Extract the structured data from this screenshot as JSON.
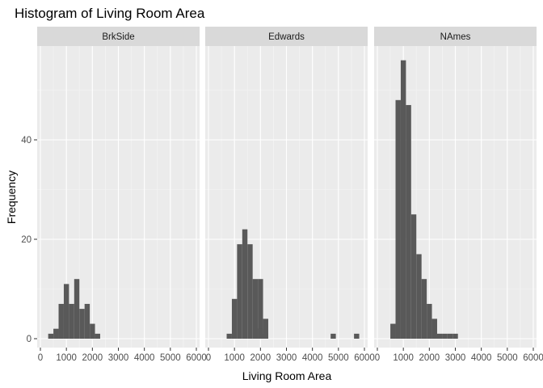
{
  "chart_data": {
    "type": "bar",
    "title": "Histogram of Living Room Area",
    "xlabel": "Living Room Area",
    "ylabel": "Frequency",
    "xlim": [
      0,
      6000
    ],
    "ylim": [
      0,
      55
    ],
    "x_ticks": [
      0,
      1000,
      2000,
      3000,
      4000,
      5000,
      6000
    ],
    "y_ticks": [
      0,
      20,
      40
    ],
    "bin_width": 200,
    "grid": true,
    "panel_background": "#ebebeb",
    "strip_background": "#d9d9d9",
    "bar_color": "#595959",
    "facets": [
      {
        "name": "BrkSide",
        "bin_centers": [
          400,
          600,
          800,
          1000,
          1200,
          1400,
          1600,
          1800,
          2000
        ],
        "counts": [
          1,
          2,
          7,
          11,
          7,
          12,
          6,
          7,
          3
        ],
        "extra_bins": [
          {
            "center": 2200,
            "count": 1
          }
        ]
      },
      {
        "name": "Edwards",
        "bin_centers": [
          800,
          1000,
          1200,
          1400,
          1600,
          1800,
          2000,
          2200
        ],
        "counts": [
          1,
          8,
          19,
          22,
          19,
          12,
          12,
          1
        ],
        "extra_bins": [
          {
            "center": 2000,
            "count": 2
          },
          {
            "center": 2200,
            "count": 4
          },
          {
            "center": 4800,
            "count": 1
          },
          {
            "center": 5700,
            "count": 1
          }
        ]
      },
      {
        "name": "NAmes",
        "bin_centers": [
          600,
          800,
          1000,
          1200,
          1400,
          1600,
          1800,
          2000,
          2200,
          2400,
          2600,
          2800,
          3000
        ],
        "counts": [
          3,
          48,
          56,
          47,
          25,
          17,
          12,
          7,
          4,
          1,
          1,
          1,
          1
        ],
        "extra_bins": []
      }
    ]
  }
}
